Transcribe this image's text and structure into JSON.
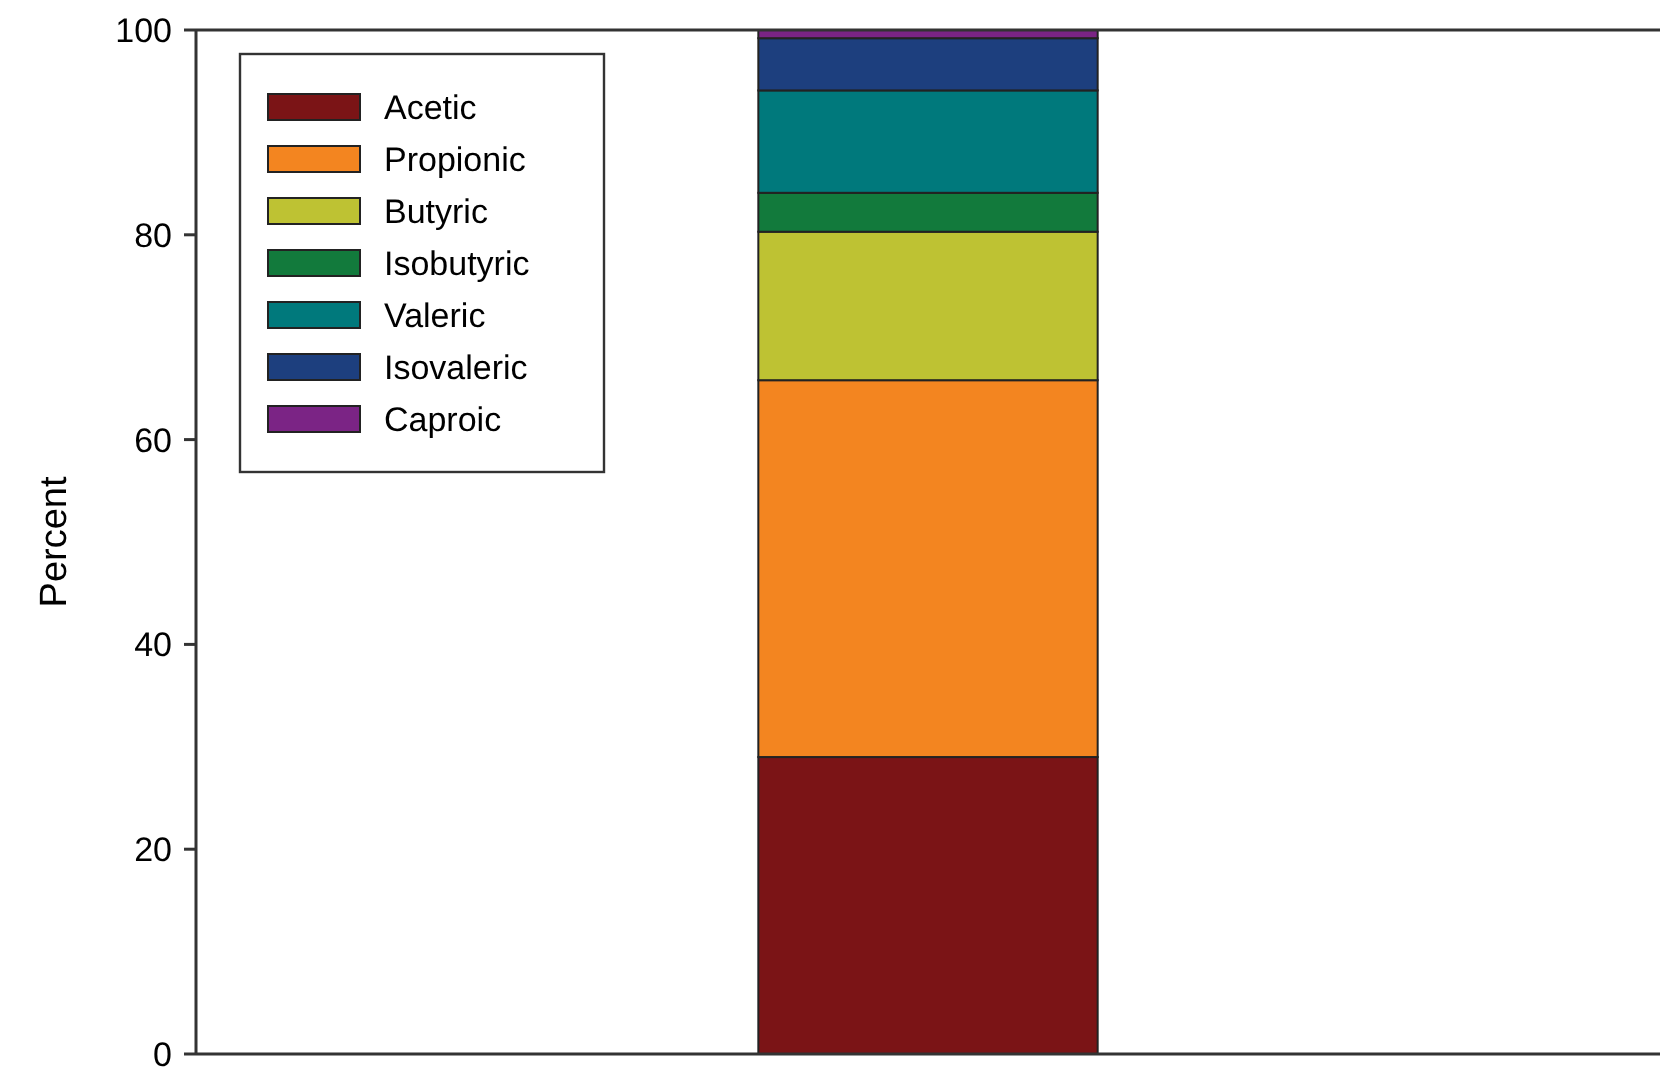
{
  "chart_data": {
    "type": "bar",
    "stacked": true,
    "ylabel": "Percent",
    "categories": [
      null
    ],
    "ylim": [
      0,
      100
    ],
    "yticks": [
      0,
      20,
      40,
      60,
      80,
      100
    ],
    "legend": "top left",
    "grid": false,
    "series": [
      {
        "name": "Acetic",
        "color": "#7b1416",
        "values": [
          29.0
        ]
      },
      {
        "name": "Propionic",
        "color": "#f38520",
        "values": [
          36.8
        ]
      },
      {
        "name": "Butyric",
        "color": "#bec233",
        "values": [
          14.5
        ]
      },
      {
        "name": "Isobutyric",
        "color": "#127a3c",
        "values": [
          3.8
        ]
      },
      {
        "name": "Valeric",
        "color": "#00797c",
        "values": [
          10.0
        ]
      },
      {
        "name": "Isovaleric",
        "color": "#1d3f7e",
        "values": [
          5.1
        ]
      },
      {
        "name": "Caproic",
        "color": "#7b2485",
        "values": [
          0.8
        ]
      }
    ]
  }
}
